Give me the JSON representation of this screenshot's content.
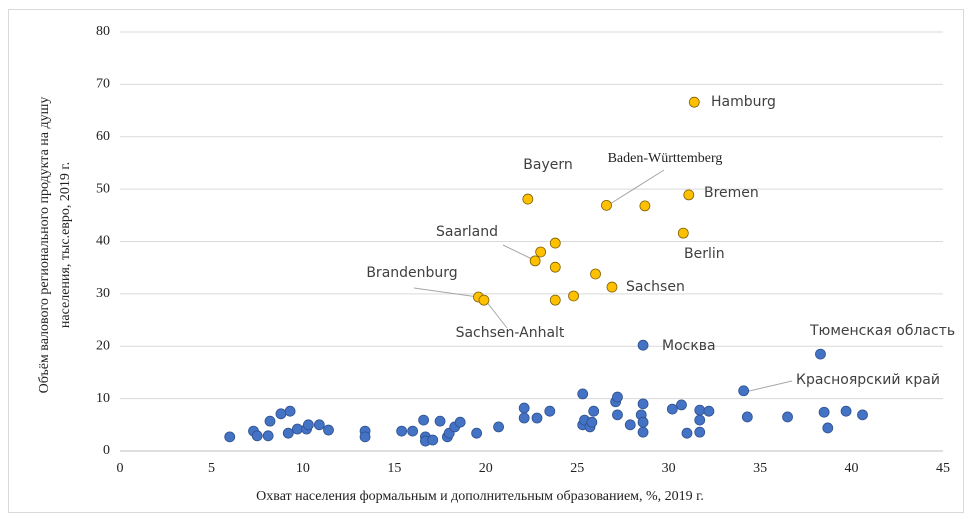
{
  "chart_data": {
    "type": "scatter",
    "xlabel": "Охват населения формальным и дополнительным образованием, %, 2019 г.",
    "ylabel_lines": [
      "Объём валового регионального продукта на душу",
      "населения, тыс.евро, 2019 г."
    ],
    "xlim": [
      0,
      45
    ],
    "xticks": [
      0,
      5,
      10,
      15,
      20,
      25,
      30,
      35,
      40,
      45
    ],
    "ylim": [
      0,
      80
    ],
    "yticks": [
      0,
      10,
      20,
      30,
      40,
      50,
      60,
      70,
      80
    ],
    "grid": true,
    "series": [
      {
        "color": "#ffc000",
        "x": [
          31.4,
          22.3,
          26.6,
          28.7,
          31.1,
          30.8,
          23.0,
          22.7,
          23.8,
          23.8,
          19.6,
          19.9,
          23.8,
          24.8,
          26.0,
          26.9
        ],
        "values": [
          66.6,
          48.1,
          46.9,
          46.8,
          48.9,
          41.6,
          38.0,
          36.3,
          39.7,
          35.1,
          29.4,
          28.8,
          28.8,
          29.6,
          33.8,
          31.3
        ]
      },
      {
        "color": "#4472c4",
        "x": [
          28.6,
          38.3,
          34.1,
          6.0,
          7.3,
          7.5,
          8.1,
          8.2,
          8.8,
          9.3,
          9.2,
          9.7,
          10.2,
          10.3,
          10.9,
          11.4,
          13.4,
          13.4,
          15.4,
          16.0,
          16.6,
          16.7,
          16.7,
          17.1,
          17.5,
          17.9,
          18.0,
          18.3,
          18.6,
          19.5,
          20.7,
          22.1,
          22.1,
          22.8,
          23.5,
          25.3,
          25.3,
          25.4,
          25.7,
          25.8,
          25.9,
          27.1,
          27.2,
          27.2,
          27.9,
          28.5,
          28.6,
          28.6,
          28.6,
          30.2,
          30.7,
          31.0,
          31.7,
          31.7,
          31.7,
          32.2,
          34.3,
          36.5,
          38.5,
          38.7,
          39.7,
          40.6
        ],
        "values": [
          20.2,
          18.5,
          11.5,
          2.7,
          3.8,
          2.9,
          2.9,
          5.7,
          7.1,
          7.6,
          3.4,
          4.2,
          4.2,
          5.0,
          5.0,
          4.0,
          3.8,
          2.7,
          3.8,
          3.8,
          5.9,
          2.7,
          1.9,
          2.1,
          5.7,
          2.7,
          3.4,
          4.6,
          5.5,
          3.4,
          4.6,
          8.2,
          6.3,
          6.3,
          7.6,
          10.9,
          5.0,
          5.9,
          4.6,
          5.5,
          7.6,
          9.4,
          10.3,
          6.9,
          5.0,
          6.9,
          9.0,
          5.5,
          3.6,
          8.0,
          8.8,
          3.4,
          7.8,
          5.9,
          3.6,
          7.6,
          6.5,
          6.5,
          7.4,
          4.4,
          7.6,
          6.9
        ]
      }
    ],
    "annotations": [
      "Hamburg",
      "Bayern",
      "Baden-Württemberg",
      "Bremen",
      "Berlin",
      "Saarland",
      "Brandenburg",
      "Sachsen-Anhalt",
      "Sachsen",
      "Москва",
      "Тюменская область",
      "Красноярский край"
    ]
  }
}
